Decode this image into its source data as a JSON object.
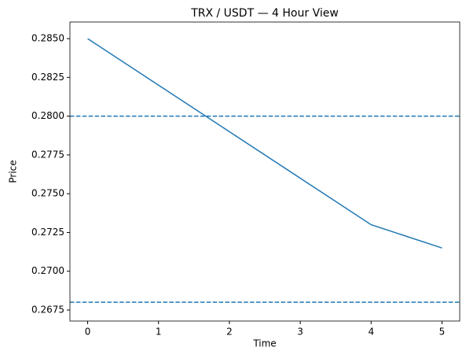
{
  "chart_data": {
    "type": "line",
    "title": "TRX / USDT — 4 Hour View",
    "x_label": "Time",
    "y_label": "Price",
    "x": [
      0,
      1,
      2,
      3,
      4,
      5
    ],
    "series": [
      {
        "color": "#1f77b4",
        "values": [
          0.285,
          0.282,
          0.279,
          0.276,
          0.273,
          0.2715
        ]
      }
    ],
    "reference_lines": [
      {
        "value": 0.28,
        "color": "#1f77b4",
        "style": "dashed"
      },
      {
        "value": 0.268,
        "color": "#1f77b4",
        "style": "dashed"
      }
    ],
    "xlim": [
      -0.25,
      5.25
    ],
    "xticks": [
      0,
      1,
      2,
      3,
      4,
      5
    ],
    "ylim": [
      0.26679,
      0.28607
    ],
    "yticks": [
      {
        "value": 0.2675,
        "label": "0.2675"
      },
      {
        "value": 0.27,
        "label": "0.2700"
      },
      {
        "value": 0.2725,
        "label": "0.2725"
      },
      {
        "value": 0.275,
        "label": "0.2750"
      },
      {
        "value": 0.2775,
        "label": "0.2775"
      },
      {
        "value": 0.28,
        "label": "0.2800"
      },
      {
        "value": 0.2825,
        "label": "0.2825"
      },
      {
        "value": 0.285,
        "label": "0.2850"
      }
    ],
    "grid": false
  }
}
